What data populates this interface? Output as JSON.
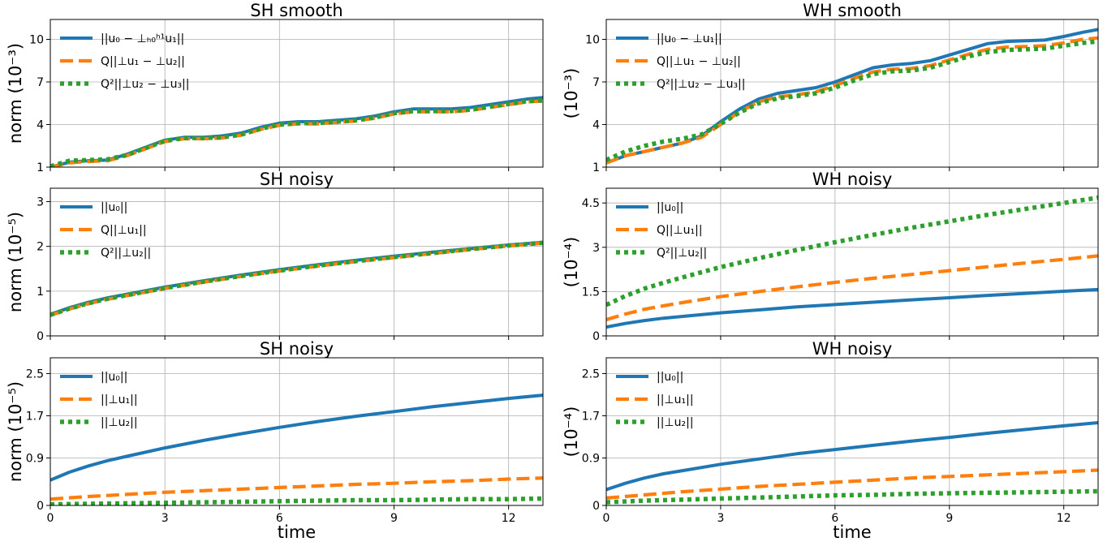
{
  "colors": {
    "blue": "#1f77b4",
    "orange": "#ff7f0e",
    "green": "#2ca02c"
  },
  "chart_data": [
    {
      "type": "line",
      "title": "SH smooth",
      "ylabel": "norm (10⁻³)",
      "xlabel": "",
      "xlim": [
        0,
        12.9
      ],
      "ylim": [
        1,
        11.4
      ],
      "xticks": [
        0,
        3,
        6,
        9,
        12
      ],
      "yticks": [
        1,
        4,
        7,
        10
      ],
      "grid": true,
      "legend": "top-left",
      "series": [
        {
          "name": "||u₀ − ⊥ₕ₀ʰ¹u₁||",
          "style": "solid",
          "color": "#1f77b4",
          "x": [
            0,
            0.5,
            1,
            1.5,
            2,
            2.5,
            3,
            3.5,
            4,
            4.5,
            5,
            5.5,
            6,
            6.5,
            7,
            7.5,
            8,
            8.5,
            9,
            9.5,
            10,
            10.5,
            11,
            11.5,
            12,
            12.5,
            12.9
          ],
          "y": [
            1.0,
            1.35,
            1.45,
            1.5,
            1.9,
            2.4,
            2.9,
            3.1,
            3.1,
            3.2,
            3.4,
            3.8,
            4.1,
            4.2,
            4.2,
            4.3,
            4.4,
            4.6,
            4.9,
            5.1,
            5.1,
            5.1,
            5.2,
            5.4,
            5.6,
            5.8,
            5.9
          ]
        },
        {
          "name": "Q||⊥u₁ − ⊥u₂||",
          "style": "dashed",
          "color": "#ff7f0e",
          "x": [
            0,
            0.5,
            1,
            1.5,
            2,
            2.5,
            3,
            3.5,
            4,
            4.5,
            5,
            5.5,
            6,
            6.5,
            7,
            7.5,
            8,
            8.5,
            9,
            9.5,
            10,
            10.5,
            11,
            11.5,
            12,
            12.5,
            12.9
          ],
          "y": [
            1.0,
            1.3,
            1.4,
            1.45,
            1.8,
            2.3,
            2.8,
            3.0,
            3.0,
            3.05,
            3.25,
            3.65,
            3.95,
            4.05,
            4.05,
            4.15,
            4.25,
            4.45,
            4.75,
            4.9,
            4.9,
            4.9,
            5.0,
            5.2,
            5.4,
            5.6,
            5.65
          ]
        },
        {
          "name": "Q²||⊥u₂ − ⊥u₃||",
          "style": "dotted",
          "color": "#2ca02c",
          "x": [
            0,
            0.5,
            1,
            1.5,
            2,
            2.5,
            3,
            3.5,
            4,
            4.5,
            5,
            5.5,
            6,
            6.5,
            7,
            7.5,
            8,
            8.5,
            9,
            9.5,
            10,
            10.5,
            11,
            11.5,
            12,
            12.5,
            12.9
          ],
          "y": [
            1.05,
            1.45,
            1.5,
            1.55,
            1.85,
            2.35,
            2.85,
            3.05,
            3.05,
            3.1,
            3.3,
            3.7,
            4.0,
            4.1,
            4.1,
            4.2,
            4.3,
            4.5,
            4.8,
            4.95,
            4.95,
            4.95,
            5.05,
            5.25,
            5.45,
            5.65,
            5.7
          ]
        }
      ]
    },
    {
      "type": "line",
      "title": "WH smooth",
      "ylabel": "(10⁻³)",
      "xlabel": "",
      "xlim": [
        0,
        12.9
      ],
      "ylim": [
        1,
        11.4
      ],
      "xticks": [
        0,
        3,
        6,
        9,
        12
      ],
      "yticks": [
        1,
        4,
        7,
        10
      ],
      "grid": true,
      "legend": "top-left",
      "series": [
        {
          "name": "||u₀ − ⊥u₁||",
          "style": "solid",
          "color": "#1f77b4",
          "x": [
            0,
            0.5,
            1,
            1.5,
            2,
            2.5,
            3,
            3.5,
            4,
            4.5,
            5,
            5.5,
            6,
            6.5,
            7,
            7.5,
            8,
            8.5,
            9,
            9.5,
            10,
            10.5,
            11,
            11.5,
            12,
            12.5,
            12.9
          ],
          "y": [
            1.3,
            1.8,
            2.1,
            2.4,
            2.7,
            3.2,
            4.2,
            5.1,
            5.8,
            6.2,
            6.4,
            6.6,
            7.0,
            7.5,
            8.0,
            8.2,
            8.3,
            8.5,
            8.9,
            9.3,
            9.7,
            9.85,
            9.9,
            9.95,
            10.2,
            10.5,
            10.7
          ]
        },
        {
          "name": "Q||⊥u₁ − ⊥u₂||",
          "style": "dashed",
          "color": "#ff7f0e",
          "x": [
            0,
            0.5,
            1,
            1.5,
            2,
            2.5,
            3,
            3.5,
            4,
            4.5,
            5,
            5.5,
            6,
            6.5,
            7,
            7.5,
            8,
            8.5,
            9,
            9.5,
            10,
            10.5,
            11,
            11.5,
            12,
            12.5,
            12.9
          ],
          "y": [
            1.3,
            1.8,
            2.1,
            2.4,
            2.7,
            3.1,
            4.0,
            4.9,
            5.6,
            5.95,
            6.1,
            6.3,
            6.75,
            7.25,
            7.7,
            7.9,
            7.95,
            8.15,
            8.55,
            8.95,
            9.3,
            9.45,
            9.5,
            9.55,
            9.75,
            10.0,
            10.1
          ]
        },
        {
          "name": "Q²||⊥u₂ − ⊥u₃||",
          "style": "dotted",
          "color": "#2ca02c",
          "x": [
            0,
            0.5,
            1,
            1.5,
            2,
            2.5,
            3,
            3.5,
            4,
            4.5,
            5,
            5.5,
            6,
            6.5,
            7,
            7.5,
            8,
            8.5,
            9,
            9.5,
            10,
            10.5,
            11,
            11.5,
            12,
            12.5,
            12.9
          ],
          "y": [
            1.5,
            2.1,
            2.5,
            2.8,
            3.0,
            3.3,
            4.05,
            4.85,
            5.5,
            5.85,
            6.0,
            6.2,
            6.6,
            7.1,
            7.55,
            7.75,
            7.8,
            8.0,
            8.4,
            8.8,
            9.1,
            9.25,
            9.3,
            9.35,
            9.55,
            9.75,
            9.85
          ]
        }
      ]
    },
    {
      "type": "line",
      "title": "SH noisy",
      "ylabel": "norm (10⁻⁵)",
      "xlabel": "",
      "xlim": [
        0,
        12.9
      ],
      "ylim": [
        0,
        3.3
      ],
      "xticks": [
        0,
        3,
        6,
        9,
        12
      ],
      "yticks": [
        0,
        1,
        2,
        3
      ],
      "grid": true,
      "legend": "top-left",
      "series": [
        {
          "name": "||u₀||",
          "style": "solid",
          "color": "#1f77b4",
          "x": [
            0,
            0.5,
            1,
            1.5,
            2,
            3,
            4,
            5,
            6,
            7,
            8,
            9,
            10,
            11,
            12,
            12.9
          ],
          "y": [
            0.48,
            0.63,
            0.75,
            0.85,
            0.93,
            1.09,
            1.23,
            1.36,
            1.48,
            1.59,
            1.69,
            1.78,
            1.87,
            1.95,
            2.03,
            2.09
          ]
        },
        {
          "name": "Q||⊥u₁||",
          "style": "dashed",
          "color": "#ff7f0e",
          "x": [
            0,
            0.5,
            1,
            1.5,
            2,
            3,
            4,
            5,
            6,
            7,
            8,
            9,
            10,
            11,
            12,
            12.9
          ],
          "y": [
            0.46,
            0.6,
            0.72,
            0.82,
            0.9,
            1.06,
            1.2,
            1.33,
            1.45,
            1.56,
            1.66,
            1.75,
            1.84,
            1.93,
            2.01,
            2.07
          ]
        },
        {
          "name": "Q²||⊥u₂||",
          "style": "dotted",
          "color": "#2ca02c",
          "x": [
            0,
            0.5,
            1,
            1.5,
            2,
            3,
            4,
            5,
            6,
            7,
            8,
            9,
            10,
            11,
            12,
            12.9
          ],
          "y": [
            0.47,
            0.61,
            0.73,
            0.83,
            0.91,
            1.07,
            1.21,
            1.34,
            1.46,
            1.57,
            1.67,
            1.76,
            1.85,
            1.94,
            2.02,
            2.08
          ]
        }
      ]
    },
    {
      "type": "line",
      "title": "WH noisy",
      "ylabel": "(10⁻⁴)",
      "xlabel": "",
      "xlim": [
        0,
        12.9
      ],
      "ylim": [
        0,
        5.0
      ],
      "xticks": [
        0,
        3,
        6,
        9,
        12
      ],
      "yticks": [
        0,
        1.5,
        3,
        4.5
      ],
      "ytick_labels": [
        "0",
        "1.5",
        "3",
        "4.5"
      ],
      "grid": true,
      "legend": "top-left",
      "series": [
        {
          "name": "||u₀||",
          "style": "solid",
          "color": "#1f77b4",
          "x": [
            0,
            0.5,
            1,
            1.5,
            2,
            3,
            4,
            5,
            6,
            7,
            8,
            9,
            10,
            11,
            12,
            12.9
          ],
          "y": [
            0.3,
            0.42,
            0.52,
            0.6,
            0.66,
            0.78,
            0.88,
            0.98,
            1.06,
            1.14,
            1.22,
            1.29,
            1.37,
            1.44,
            1.51,
            1.57
          ]
        },
        {
          "name": "Q||⊥u₁||",
          "style": "dashed",
          "color": "#ff7f0e",
          "x": [
            0,
            0.5,
            1,
            1.5,
            2,
            3,
            4,
            5,
            6,
            7,
            8,
            9,
            10,
            11,
            12,
            12.9
          ],
          "y": [
            0.55,
            0.74,
            0.9,
            1.02,
            1.13,
            1.33,
            1.5,
            1.66,
            1.81,
            1.95,
            2.08,
            2.21,
            2.34,
            2.47,
            2.59,
            2.71
          ]
        },
        {
          "name": "Q²||⊥u₂||",
          "style": "dotted",
          "color": "#2ca02c",
          "x": [
            0,
            0.5,
            1,
            1.5,
            2,
            3,
            4,
            5,
            6,
            7,
            8,
            9,
            10,
            11,
            12,
            12.9
          ],
          "y": [
            1.05,
            1.35,
            1.6,
            1.8,
            1.98,
            2.33,
            2.63,
            2.91,
            3.17,
            3.42,
            3.66,
            3.88,
            4.1,
            4.3,
            4.5,
            4.68
          ]
        }
      ]
    },
    {
      "type": "line",
      "title": "SH noisy",
      "ylabel": "norm (10⁻⁵)",
      "xlabel": "time",
      "xlim": [
        0,
        12.9
      ],
      "ylim": [
        0,
        2.8
      ],
      "xticks": [
        0,
        3,
        6,
        9,
        12
      ],
      "yticks": [
        0,
        0.9,
        1.7,
        2.5
      ],
      "ytick_labels": [
        "0",
        "0.9",
        "1.7",
        "2.5"
      ],
      "grid": true,
      "legend": "top-left",
      "series": [
        {
          "name": "||u₀||",
          "style": "solid",
          "color": "#1f77b4",
          "x": [
            0,
            0.5,
            1,
            1.5,
            2,
            3,
            4,
            5,
            6,
            7,
            8,
            9,
            10,
            11,
            12,
            12.9
          ],
          "y": [
            0.48,
            0.63,
            0.75,
            0.85,
            0.93,
            1.09,
            1.23,
            1.36,
            1.48,
            1.59,
            1.69,
            1.78,
            1.87,
            1.95,
            2.03,
            2.09
          ]
        },
        {
          "name": "||⊥u₁||",
          "style": "dashed",
          "color": "#ff7f0e",
          "x": [
            0,
            1,
            2,
            3,
            4,
            5,
            6,
            7,
            8,
            9,
            10,
            11,
            12,
            12.9
          ],
          "y": [
            0.12,
            0.17,
            0.21,
            0.25,
            0.28,
            0.31,
            0.34,
            0.37,
            0.4,
            0.42,
            0.45,
            0.47,
            0.5,
            0.52
          ]
        },
        {
          "name": "||⊥u₂||",
          "style": "dotted",
          "color": "#2ca02c",
          "x": [
            0,
            1,
            2,
            3,
            4,
            5,
            6,
            7,
            8,
            9,
            10,
            11,
            12,
            12.9
          ],
          "y": [
            0.02,
            0.03,
            0.04,
            0.05,
            0.06,
            0.07,
            0.08,
            0.09,
            0.1,
            0.1,
            0.11,
            0.12,
            0.12,
            0.13
          ]
        }
      ]
    },
    {
      "type": "line",
      "title": "WH noisy",
      "ylabel": "(10⁻⁴)",
      "xlabel": "time",
      "xlim": [
        0,
        12.9
      ],
      "ylim": [
        0,
        2.8
      ],
      "xticks": [
        0,
        3,
        6,
        9,
        12
      ],
      "yticks": [
        0,
        0.9,
        1.7,
        2.5
      ],
      "ytick_labels": [
        "0",
        "0.9",
        "1.7",
        "2.5"
      ],
      "grid": true,
      "legend": "top-left",
      "series": [
        {
          "name": "||u₀||",
          "style": "solid",
          "color": "#1f77b4",
          "x": [
            0,
            0.5,
            1,
            1.5,
            2,
            3,
            4,
            5,
            6,
            7,
            8,
            9,
            10,
            11,
            12,
            12.9
          ],
          "y": [
            0.3,
            0.42,
            0.52,
            0.6,
            0.66,
            0.78,
            0.88,
            0.98,
            1.06,
            1.14,
            1.22,
            1.29,
            1.37,
            1.44,
            1.51,
            1.57
          ]
        },
        {
          "name": "||⊥u₁||",
          "style": "dashed",
          "color": "#ff7f0e",
          "x": [
            0,
            1,
            2,
            3,
            4,
            5,
            6,
            7,
            8,
            9,
            10,
            11,
            12,
            12.9
          ],
          "y": [
            0.14,
            0.2,
            0.26,
            0.31,
            0.36,
            0.4,
            0.44,
            0.48,
            0.52,
            0.55,
            0.58,
            0.61,
            0.64,
            0.67
          ]
        },
        {
          "name": "||⊥u₂||",
          "style": "dotted",
          "color": "#2ca02c",
          "x": [
            0,
            1,
            2,
            3,
            4,
            5,
            6,
            7,
            8,
            9,
            10,
            11,
            12,
            12.9
          ],
          "y": [
            0.06,
            0.09,
            0.11,
            0.13,
            0.15,
            0.17,
            0.19,
            0.2,
            0.22,
            0.23,
            0.24,
            0.25,
            0.26,
            0.27
          ]
        }
      ]
    }
  ],
  "legend_labels": [
    [
      {
        "pre": "||",
        "b1": "u",
        "s1": "0",
        "mid": " − ⊥",
        "sup": "h₁",
        "sub": "h₀",
        "b2": "u",
        "s2": "1",
        "post": "||"
      },
      {
        "pre": "Q||⊥",
        "sup": "h₁",
        "sub": "h₀",
        "b1": "u",
        "s1": "1",
        "mid": " − ⊥",
        "sup2": "h₂",
        "sub2": "h₀",
        "b2": "u",
        "s2": "2",
        "post": "||"
      },
      {
        "pre": "Q²||⊥",
        "sup": "h₂",
        "sub": "h₀",
        "b1": "u",
        "s1": "2",
        "mid": " − ⊥",
        "sup2": "h₃",
        "sub2": "h₀",
        "b2": "u",
        "s2": "3",
        "post": "||"
      }
    ]
  ]
}
